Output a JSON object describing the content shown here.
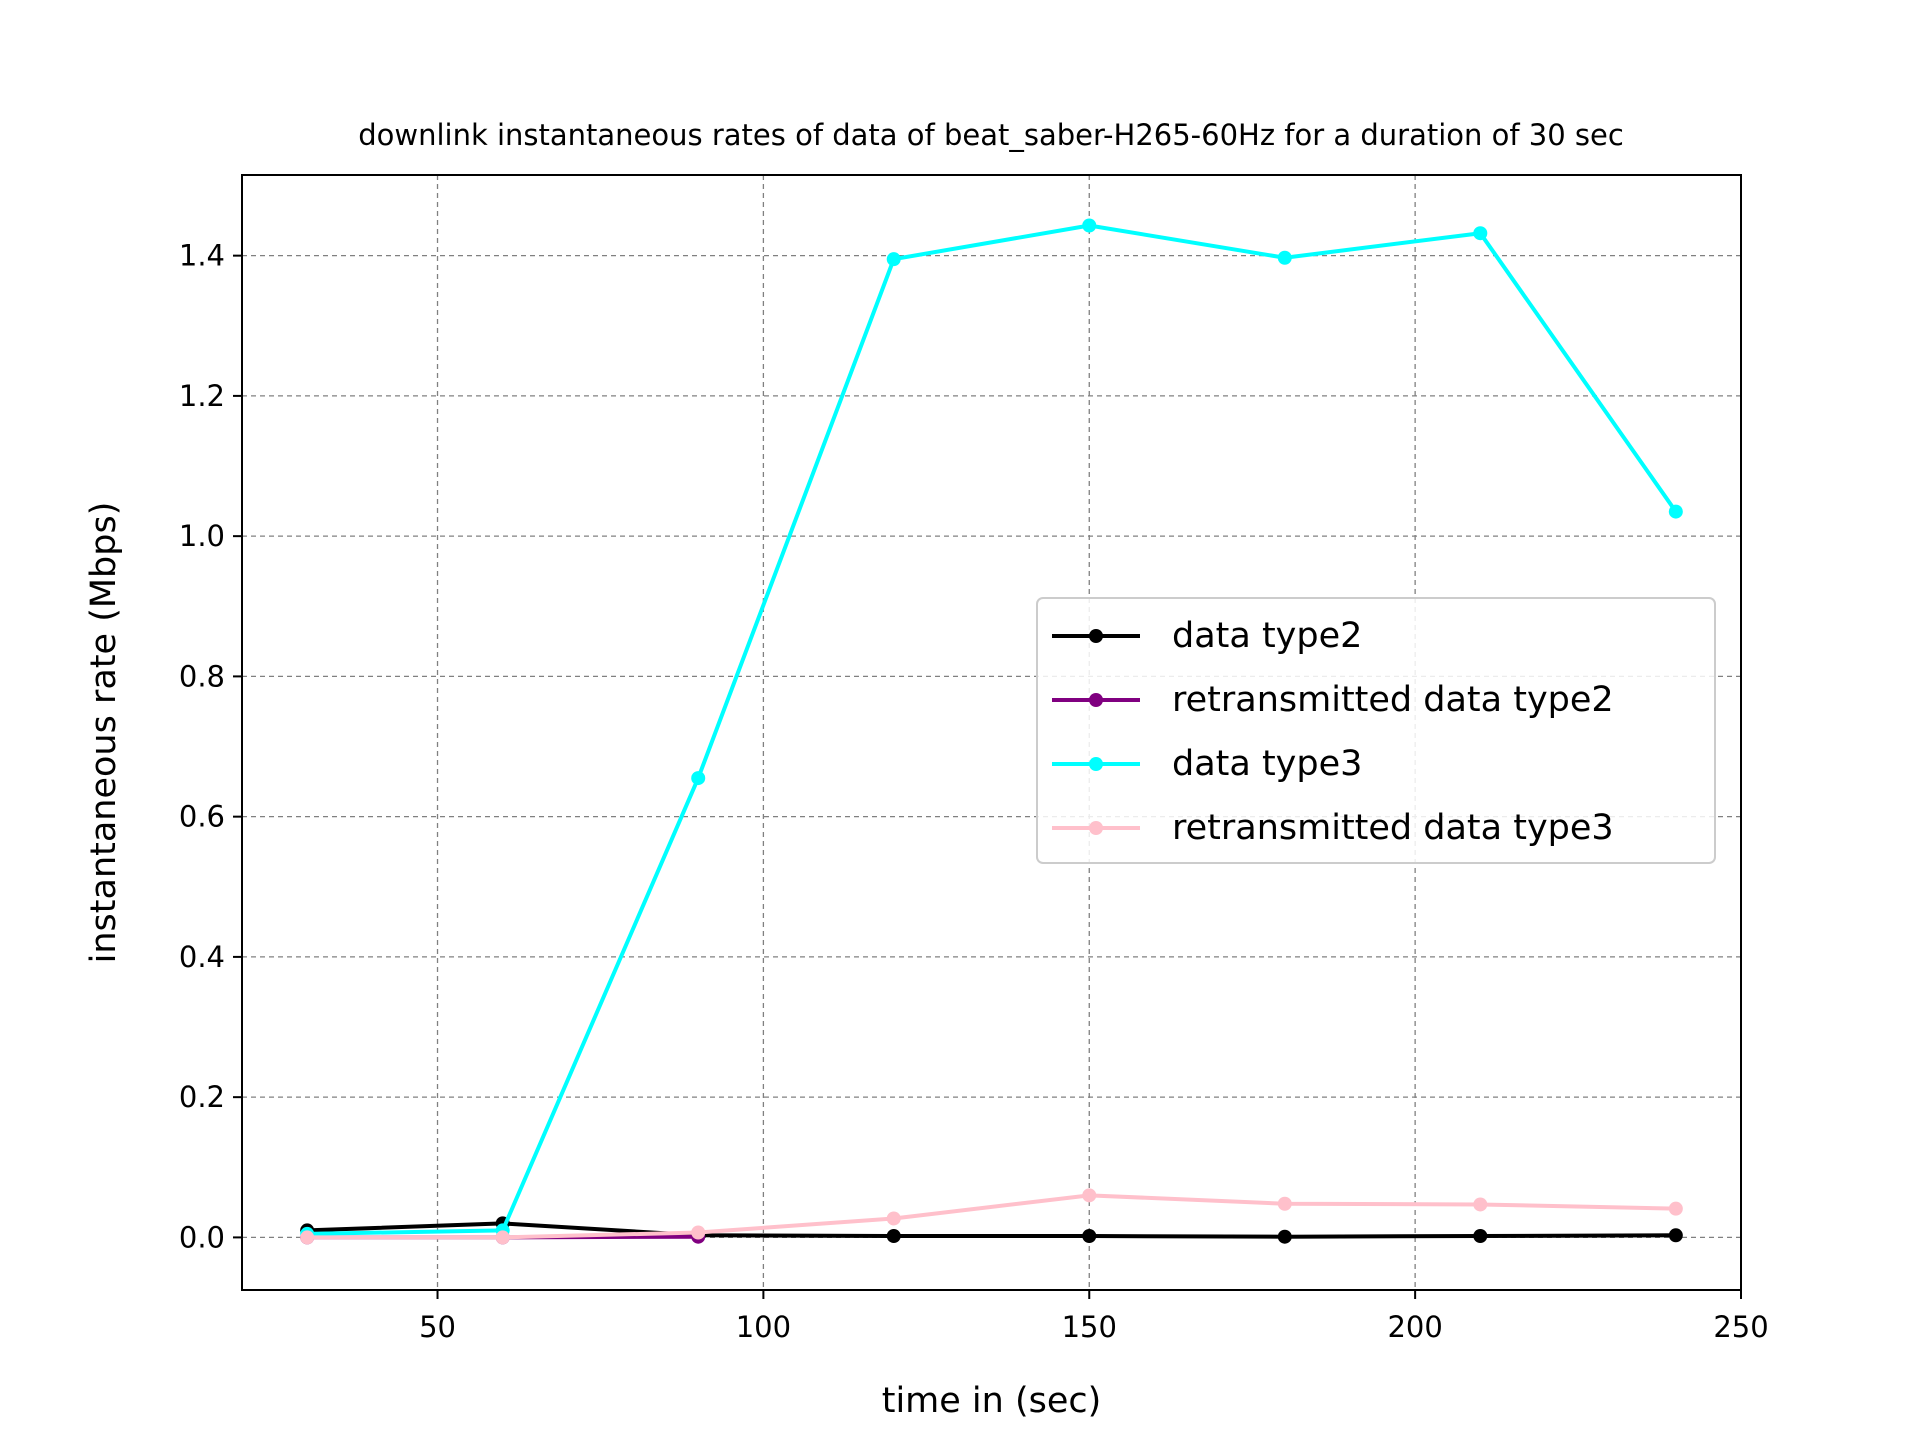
{
  "chart_data": {
    "type": "line",
    "title": "downlink instantaneous rates of data of beat_saber-H265-60Hz for a duration of 30 sec",
    "xlabel": "time in (sec)",
    "ylabel": "instantaneous rate (Mbps)",
    "xlim": [
      20,
      250
    ],
    "ylim": [
      -0.075,
      1.515
    ],
    "xticks": [
      50,
      100,
      150,
      200,
      250
    ],
    "xtick_labels": [
      "50",
      "100",
      "150",
      "200",
      "250"
    ],
    "yticks": [
      0.0,
      0.2,
      0.4,
      0.6,
      0.8,
      1.0,
      1.2,
      1.4
    ],
    "ytick_labels": [
      "0.0",
      "0.2",
      "0.4",
      "0.6",
      "0.8",
      "1.0",
      "1.2",
      "1.4"
    ],
    "grid": true,
    "legend_position": "center-right",
    "x": [
      30,
      60,
      90,
      120,
      150,
      180,
      210,
      240
    ],
    "series": [
      {
        "name": "data type2",
        "color": "#000000",
        "x": [
          30,
          60,
          90,
          120,
          150,
          180,
          210,
          240
        ],
        "values": [
          0.01,
          0.02,
          0.003,
          0.002,
          0.002,
          0.001,
          0.002,
          0.003
        ]
      },
      {
        "name": "retransmitted data type2",
        "color": "#800080",
        "x": [
          30,
          60,
          90
        ],
        "values": [
          0.0,
          0.0,
          0.001
        ]
      },
      {
        "name": "data type3",
        "color": "#00ffff",
        "x": [
          30,
          60,
          90,
          120,
          150,
          180,
          210,
          240
        ],
        "values": [
          0.005,
          0.01,
          0.655,
          1.395,
          1.443,
          1.397,
          1.432,
          1.035
        ]
      },
      {
        "name": "retransmitted data type3",
        "color": "#ffc0cb",
        "x": [
          30,
          60,
          90,
          120,
          150,
          180,
          210,
          240
        ],
        "values": [
          0.0,
          0.0,
          0.007,
          0.027,
          0.06,
          0.048,
          0.047,
          0.041
        ]
      }
    ]
  }
}
